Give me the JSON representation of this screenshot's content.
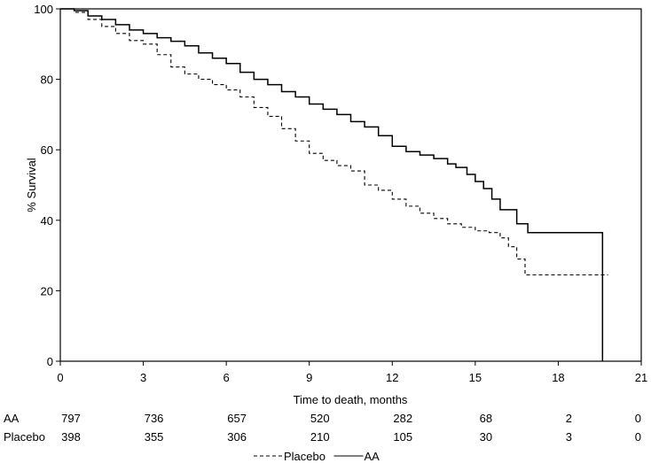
{
  "chart_data": {
    "type": "line",
    "xlabel": "Time to death, months",
    "ylabel": "% Survival",
    "xlim": [
      0,
      21
    ],
    "ylim": [
      0,
      100
    ],
    "xticks": [
      "0",
      "3",
      "6",
      "9",
      "12",
      "15",
      "18",
      "21"
    ],
    "yticks": [
      "0",
      "20",
      "40",
      "60",
      "80",
      "100"
    ],
    "grid": false,
    "legend_position": "bottom-center",
    "series": [
      {
        "name": "AA",
        "style": "solid",
        "x": [
          0,
          0.5,
          1,
          1.5,
          2,
          2.5,
          3,
          3.5,
          4,
          4.5,
          5,
          5.5,
          6,
          6.5,
          7,
          7.5,
          8,
          8.5,
          9,
          9.5,
          10,
          10.5,
          11,
          11.5,
          12,
          12.5,
          13,
          13.5,
          14,
          14.3,
          14.7,
          15,
          15.3,
          15.6,
          15.9,
          16.2,
          16.5,
          16.9,
          17.5,
          18,
          19,
          19.6,
          19.6
        ],
        "y": [
          100,
          99.5,
          98,
          97,
          95.5,
          94,
          93,
          91.8,
          90.8,
          89.5,
          87.5,
          86,
          84.5,
          82,
          80,
          78.5,
          76.5,
          75,
          73,
          71.5,
          70,
          68,
          66.5,
          64,
          61,
          59.5,
          58.5,
          57.5,
          56,
          55,
          53,
          51,
          49,
          46,
          43,
          43,
          39,
          36.5,
          36.5,
          36.5,
          36.5,
          36.5,
          0
        ]
      },
      {
        "name": "Placebo",
        "style": "dashed",
        "x": [
          0,
          0.5,
          1,
          1.5,
          2,
          2.5,
          3,
          3.5,
          4,
          4.5,
          5,
          5.5,
          6,
          6.5,
          7,
          7.5,
          8,
          8.5,
          9,
          9.5,
          10,
          10.5,
          11,
          11.5,
          12,
          12.5,
          13,
          13.5,
          14,
          14.5,
          15,
          15.5,
          15.9,
          16.2,
          16.5,
          16.8,
          17.5,
          18,
          19,
          19.8
        ],
        "y": [
          100,
          99,
          97,
          95,
          93,
          91,
          90,
          87,
          83.5,
          81.5,
          80,
          78.5,
          77,
          75,
          72,
          69.5,
          66,
          62.5,
          59,
          57,
          55.5,
          54,
          50,
          48.5,
          46,
          44,
          42,
          40.5,
          39,
          38,
          37,
          36.5,
          35,
          32.5,
          29,
          24.5,
          24.5,
          24.5,
          24.5,
          24.5
        ]
      }
    ],
    "risk_table": {
      "times": [
        0,
        3,
        6,
        9,
        12,
        15,
        18,
        21
      ],
      "rows": [
        {
          "label": "AA",
          "values": [
            "797",
            "736",
            "657",
            "520",
            "282",
            "68",
            "2",
            "0"
          ]
        },
        {
          "label": "Placebo",
          "values": [
            "398",
            "355",
            "306",
            "210",
            "105",
            "30",
            "3",
            "0"
          ]
        }
      ]
    },
    "legend": [
      {
        "label": "Placebo",
        "style": "dashed"
      },
      {
        "label": "AA",
        "style": "solid"
      }
    ]
  }
}
